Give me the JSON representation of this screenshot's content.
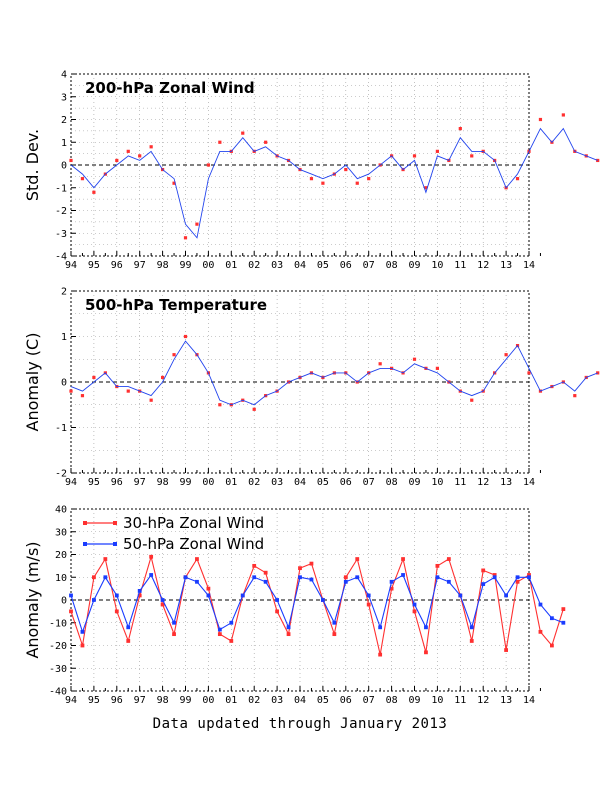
{
  "footer_text": "Data updated through January 2013",
  "colors": {
    "red": "#ff3030",
    "blue": "#1a3cff",
    "thin_line_blue": "#2244ee",
    "axis": "#000000"
  },
  "chart_data": [
    {
      "type": "line",
      "title": "200-hPa Zonal Wind",
      "ylabel": "Std. Dev.",
      "xlabel": "",
      "x_tick_labels": [
        "94",
        "95",
        "96",
        "97",
        "98",
        "99",
        "00",
        "01",
        "02",
        "03",
        "04",
        "05",
        "06",
        "07",
        "08",
        "09",
        "10",
        "11",
        "12",
        "13",
        "14"
      ],
      "xlim": [
        1994,
        2014
      ],
      "ylim": [
        -4,
        4
      ],
      "y_ticks": [
        -4,
        -3,
        -2,
        -1,
        0,
        1,
        2,
        3,
        4
      ],
      "grid": true,
      "zero_line": true,
      "series": [
        {
          "style": "points",
          "color": "red",
          "x_start": 1994.0,
          "step": 0.5,
          "values": [
            0.2,
            -0.6,
            -1.2,
            -0.4,
            0.2,
            0.6,
            0.4,
            0.8,
            -0.2,
            -0.8,
            -3.2,
            -2.6,
            0.0,
            1.0,
            0.6,
            1.4,
            0.6,
            1.0,
            0.4,
            0.2,
            -0.2,
            -0.6,
            -0.8,
            -0.4,
            -0.2,
            -0.8,
            -0.6,
            0.0,
            0.4,
            -0.2,
            0.4,
            -1.0,
            0.6,
            0.2,
            1.6,
            0.4,
            0.6,
            0.2,
            -1.0,
            -0.6,
            0.6,
            2.0,
            1.0,
            2.2,
            0.6,
            0.4,
            0.2
          ]
        },
        {
          "style": "line",
          "color": "blue",
          "x_start": 1994.0,
          "step": 0.5,
          "values": [
            0.0,
            -0.4,
            -1.0,
            -0.4,
            0.0,
            0.4,
            0.2,
            0.6,
            -0.2,
            -0.6,
            -2.6,
            -3.2,
            -0.6,
            0.6,
            0.6,
            1.2,
            0.6,
            0.8,
            0.4,
            0.2,
            -0.2,
            -0.4,
            -0.6,
            -0.4,
            0.0,
            -0.6,
            -0.4,
            0.0,
            0.4,
            -0.2,
            0.2,
            -1.2,
            0.4,
            0.2,
            1.2,
            0.6,
            0.6,
            0.2,
            -1.0,
            -0.4,
            0.6,
            1.6,
            1.0,
            1.6,
            0.6,
            0.4,
            0.2
          ]
        }
      ]
    },
    {
      "type": "line",
      "title": "500-hPa Temperature",
      "ylabel": "Anomaly (C)",
      "xlabel": "",
      "x_tick_labels": [
        "94",
        "95",
        "96",
        "97",
        "98",
        "99",
        "00",
        "01",
        "02",
        "03",
        "04",
        "05",
        "06",
        "07",
        "08",
        "09",
        "10",
        "11",
        "12",
        "13",
        "14"
      ],
      "xlim": [
        1994,
        2014
      ],
      "ylim": [
        -2,
        2
      ],
      "y_ticks": [
        -2,
        -1,
        0,
        1,
        2
      ],
      "grid": true,
      "zero_line": true,
      "series": [
        {
          "style": "points",
          "color": "red",
          "x_start": 1994.0,
          "step": 0.5,
          "values": [
            -0.2,
            -0.3,
            0.1,
            0.2,
            -0.1,
            -0.2,
            -0.2,
            -0.4,
            0.1,
            0.6,
            1.0,
            0.6,
            0.2,
            -0.5,
            -0.5,
            -0.4,
            -0.6,
            -0.3,
            -0.2,
            0.0,
            0.1,
            0.2,
            0.1,
            0.2,
            0.2,
            0.0,
            0.2,
            0.4,
            0.3,
            0.2,
            0.5,
            0.3,
            0.3,
            0.0,
            -0.2,
            -0.4,
            -0.2,
            0.2,
            0.6,
            0.8,
            0.2,
            -0.2,
            -0.1,
            0.0,
            -0.3,
            0.1,
            0.2
          ]
        },
        {
          "style": "line",
          "color": "blue",
          "x_start": 1994.0,
          "step": 0.5,
          "values": [
            -0.1,
            -0.2,
            0.0,
            0.2,
            -0.1,
            -0.1,
            -0.2,
            -0.3,
            0.0,
            0.5,
            0.9,
            0.6,
            0.2,
            -0.4,
            -0.5,
            -0.4,
            -0.5,
            -0.3,
            -0.2,
            0.0,
            0.1,
            0.2,
            0.1,
            0.2,
            0.2,
            0.0,
            0.2,
            0.3,
            0.3,
            0.2,
            0.4,
            0.3,
            0.2,
            0.0,
            -0.2,
            -0.3,
            -0.2,
            0.2,
            0.5,
            0.8,
            0.3,
            -0.2,
            -0.1,
            0.0,
            -0.2,
            0.1,
            0.2
          ]
        }
      ]
    },
    {
      "type": "line",
      "title": "",
      "ylabel": "Anomaly (m/s)",
      "xlabel": "",
      "x_tick_labels": [
        "94",
        "95",
        "96",
        "97",
        "98",
        "99",
        "00",
        "01",
        "02",
        "03",
        "04",
        "05",
        "06",
        "07",
        "08",
        "09",
        "10",
        "11",
        "12",
        "13",
        "14"
      ],
      "xlim": [
        1994,
        2014
      ],
      "ylim": [
        -40,
        40
      ],
      "y_ticks": [
        -40,
        -30,
        -20,
        -10,
        0,
        10,
        20,
        30,
        40
      ],
      "grid": true,
      "zero_line": true,
      "legend": "top-left",
      "series": [
        {
          "name": "30-hPa Zonal Wind",
          "style": "line+points",
          "color": "red",
          "x_start": 1994.0,
          "step": 0.5,
          "values": [
            -5,
            -20,
            10,
            18,
            -5,
            -18,
            2,
            19,
            -2,
            -15,
            10,
            18,
            5,
            -15,
            -18,
            2,
            15,
            12,
            -5,
            -15,
            14,
            16,
            0,
            -15,
            10,
            18,
            -2,
            -24,
            5,
            18,
            -5,
            -23,
            15,
            18,
            2,
            -18,
            13,
            11,
            -22,
            8,
            11,
            -14,
            -20,
            -4
          ]
        },
        {
          "name": "50-hPa Zonal Wind",
          "style": "line+points",
          "color": "blue",
          "x_start": 1994.0,
          "step": 0.5,
          "values": [
            2,
            -14,
            0,
            10,
            2,
            -12,
            4,
            11,
            0,
            -10,
            10,
            8,
            2,
            -13,
            -10,
            2,
            10,
            8,
            0,
            -12,
            10,
            9,
            0,
            -10,
            8,
            10,
            2,
            -12,
            8,
            11,
            -2,
            -12,
            10,
            8,
            2,
            -12,
            7,
            10,
            2,
            10,
            10,
            -2,
            -8,
            -10
          ]
        }
      ]
    }
  ]
}
